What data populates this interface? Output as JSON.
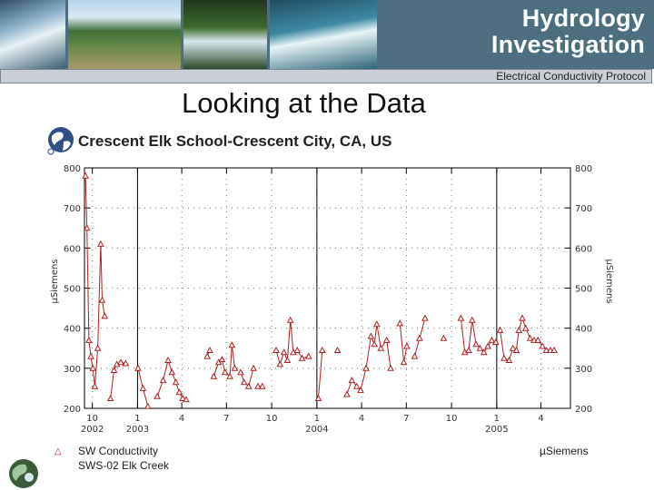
{
  "banner": {
    "title_line1": "Hydrology",
    "title_line2": "Investigation",
    "subtitle": "Electrical Conductivity Protocol",
    "photos": [
      "rushing-water-photo",
      "mountain-stream-photo",
      "waterfall-photo",
      "wave-photo"
    ]
  },
  "slide": {
    "heading": "Looking at the Data"
  },
  "legend": {
    "series": "SW Conductivity",
    "site": "SWS-02 Elk Creek",
    "unit": "µSiemens"
  },
  "chart_data": {
    "type": "line",
    "title": "Crescent Elk School-Crescent City, CA, US",
    "ylabel": "µSiemens",
    "ylabel_right": "µSiemens",
    "ylim": [
      200,
      800
    ],
    "yticks": [
      200,
      300,
      400,
      500,
      600,
      700,
      800
    ],
    "xlim": [
      "2002-09-15",
      "2005-05-31"
    ],
    "xticks": [
      {
        "date": "2002-10-01",
        "label": "10",
        "year": "2002"
      },
      {
        "date": "2003-01-01",
        "label": "1",
        "year": "2003"
      },
      {
        "date": "2003-04-01",
        "label": "4",
        "year": ""
      },
      {
        "date": "2003-07-01",
        "label": "7",
        "year": ""
      },
      {
        "date": "2003-10-01",
        "label": "10",
        "year": ""
      },
      {
        "date": "2004-01-01",
        "label": "1",
        "year": "2004"
      },
      {
        "date": "2004-04-01",
        "label": "4",
        "year": ""
      },
      {
        "date": "2004-07-01",
        "label": "7",
        "year": ""
      },
      {
        "date": "2004-10-01",
        "label": "10",
        "year": ""
      },
      {
        "date": "2005-01-01",
        "label": "1",
        "year": "2005"
      },
      {
        "date": "2005-04-01",
        "label": "4",
        "year": ""
      }
    ],
    "year_lines": [
      "2003-01-01",
      "2004-01-01",
      "2005-01-01"
    ],
    "grid": true,
    "marker": "triangle",
    "color": "#b02020",
    "series": [
      {
        "name": "SW Conductivity",
        "segments": [
          [
            [
              "2002-09-17",
              780
            ],
            [
              "2002-09-20",
              650
            ],
            [
              "2002-09-24",
              370
            ],
            [
              "2002-09-28",
              330
            ],
            [
              "2002-10-02",
              300
            ],
            [
              "2002-10-06",
              255
            ],
            [
              "2002-10-12",
              350
            ],
            [
              "2002-10-18",
              610
            ],
            [
              "2002-10-21",
              470
            ],
            [
              "2002-10-26",
              430
            ]
          ],
          [
            [
              "2002-11-07",
              225
            ],
            [
              "2002-11-14",
              295
            ],
            [
              "2002-11-20",
              310
            ],
            [
              "2002-11-28",
              315
            ],
            [
              "2002-12-08",
              312
            ]
          ],
          [
            [
              "2003-01-02",
              300
            ],
            [
              "2003-01-12",
              250
            ],
            [
              "2003-01-22",
              205
            ]
          ],
          [
            [
              "2003-02-10",
              230
            ],
            [
              "2003-02-22",
              270
            ],
            [
              "2003-03-04",
              320
            ],
            [
              "2003-03-12",
              290
            ],
            [
              "2003-03-20",
              265
            ],
            [
              "2003-03-27",
              240
            ],
            [
              "2003-04-03",
              225
            ],
            [
              "2003-04-10",
              222
            ]
          ],
          [
            [
              "2003-05-23",
              330
            ],
            [
              "2003-05-28",
              345
            ]
          ],
          [
            [
              "2003-06-05",
              280
            ],
            [
              "2003-06-15",
              315
            ],
            [
              "2003-06-22",
              322
            ],
            [
              "2003-06-28",
              290
            ],
            [
              "2003-07-08",
              280
            ],
            [
              "2003-07-12",
              358
            ],
            [
              "2003-07-18",
              300
            ]
          ],
          [
            [
              "2003-07-30",
              290
            ],
            [
              "2003-08-06",
              265
            ],
            [
              "2003-08-15",
              255
            ],
            [
              "2003-08-25",
              300
            ]
          ],
          [
            [
              "2003-09-03",
              255
            ],
            [
              "2003-09-12",
              255
            ]
          ],
          [
            [
              "2003-10-10",
              345
            ],
            [
              "2003-10-18",
              310
            ],
            [
              "2003-10-26",
              340
            ],
            [
              "2003-11-02",
              320
            ],
            [
              "2003-11-08",
              420
            ],
            [
              "2003-11-14",
              340
            ],
            [
              "2003-11-22",
              345
            ],
            [
              "2003-12-02",
              325
            ],
            [
              "2003-12-15",
              330
            ]
          ],
          [
            [
              "2004-01-04",
              225
            ],
            [
              "2004-01-12",
              345
            ]
          ],
          [
            [
              "2004-02-12",
              345
            ]
          ],
          [
            [
              "2004-03-02",
              235
            ],
            [
              "2004-03-12",
              270
            ],
            [
              "2004-03-22",
              255
            ],
            [
              "2004-03-30",
              245
            ],
            [
              "2004-04-10",
              300
            ],
            [
              "2004-04-20",
              380
            ],
            [
              "2004-04-27",
              360
            ],
            [
              "2004-05-02",
              410
            ],
            [
              "2004-05-10",
              350
            ],
            [
              "2004-05-22",
              370
            ],
            [
              "2004-05-30",
              300
            ]
          ],
          [
            [
              "2004-06-18",
              412
            ],
            [
              "2004-06-26",
              315
            ],
            [
              "2004-07-02",
              355
            ]
          ],
          [
            [
              "2004-07-18",
              330
            ],
            [
              "2004-07-28",
              375
            ],
            [
              "2004-08-08",
              425
            ]
          ],
          [
            [
              "2004-09-15",
              375
            ]
          ],
          [
            [
              "2004-10-20",
              425
            ],
            [
              "2004-10-28",
              340
            ],
            [
              "2004-11-05",
              345
            ],
            [
              "2004-11-12",
              420
            ],
            [
              "2004-11-20",
              360
            ],
            [
              "2004-11-28",
              350
            ],
            [
              "2004-12-06",
              340
            ],
            [
              "2004-12-14",
              355
            ],
            [
              "2004-12-22",
              370
            ],
            [
              "2004-12-30",
              365
            ]
          ],
          [
            [
              "2005-01-08",
              395
            ],
            [
              "2005-01-16",
              325
            ],
            [
              "2005-01-26",
              320
            ],
            [
              "2005-02-03",
              350
            ],
            [
              "2005-02-10",
              345
            ],
            [
              "2005-02-15",
              395
            ],
            [
              "2005-02-22",
              425
            ],
            [
              "2005-03-01",
              400
            ],
            [
              "2005-03-10",
              375
            ],
            [
              "2005-03-18",
              370
            ],
            [
              "2005-03-26",
              370
            ],
            [
              "2005-04-04",
              355
            ],
            [
              "2005-04-12",
              345
            ],
            [
              "2005-04-20",
              345
            ],
            [
              "2005-04-28",
              345
            ]
          ]
        ]
      }
    ]
  }
}
